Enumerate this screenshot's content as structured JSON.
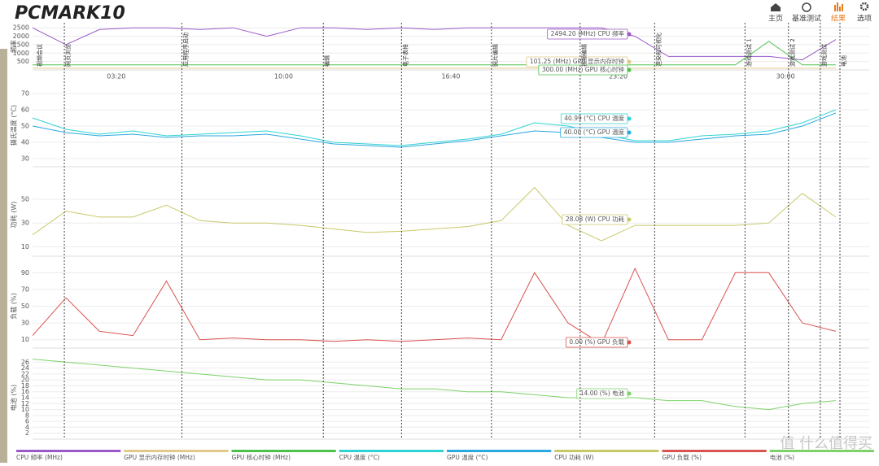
{
  "header": {
    "logo": "PCMARK10",
    "nav": [
      "主页",
      "基准测试",
      "结果",
      "选项"
    ]
  },
  "watermark": "值 什么值得买",
  "time_axis": {
    "xlim": [
      0,
      2000
    ],
    "xticks": [
      {
        "value": 200,
        "label": "03:20"
      },
      {
        "value": 600,
        "label": "10:00"
      },
      {
        "value": 1000,
        "label": "16:40"
      },
      {
        "value": 1400,
        "label": "23:20"
      },
      {
        "value": 1800,
        "label": "30:00"
      }
    ],
    "x": [
      0,
      80,
      160,
      240,
      320,
      400,
      480,
      560,
      640,
      720,
      800,
      880,
      960,
      1040,
      1120,
      1200,
      1280,
      1360,
      1440,
      1520,
      1600,
      1680,
      1760,
      1840,
      1920
    ]
  },
  "phases": [
    {
      "time": 8,
      "label": "视频会议"
    },
    {
      "time": 76,
      "label": "网页浏览"
    },
    {
      "time": 357,
      "label": "应用程序启动"
    },
    {
      "time": 695,
      "label": "编辑"
    },
    {
      "time": 882,
      "label": "电子表格"
    },
    {
      "time": 1097,
      "label": "照片编辑"
    },
    {
      "time": 1309,
      "label": "视频编辑"
    },
    {
      "time": 1487,
      "label": "渲染和可视化"
    },
    {
      "time": 1703,
      "label": "游戏测试 1"
    },
    {
      "time": 1807,
      "label": "游戏测试 2"
    },
    {
      "time": 1883,
      "label": "游戏测试"
    },
    {
      "time": 1930,
      "label": "电池"
    }
  ],
  "chart_data": [
    {
      "type": "line",
      "ylabel": "频率",
      "ylim": [
        0,
        2800
      ],
      "yticks": [
        500,
        1000,
        1500,
        2000,
        2500
      ],
      "series": [
        {
          "name": "CPU 频率 (MHz)",
          "color": "#9b59c9",
          "values": [
            2500,
            1500,
            2400,
            2500,
            2500,
            2400,
            2500,
            2000,
            2500,
            2500,
            2400,
            2500,
            2400,
            2500,
            2500,
            2500,
            2500,
            2494,
            2000,
            800,
            800,
            800,
            800,
            600,
            1800
          ]
        },
        {
          "name": "GPU 显示内存时钟 (MHz)",
          "color": "#e0c98a",
          "values": [
            101.25,
            101.25,
            101.25,
            101.25,
            101.25,
            101.25,
            101.25,
            101.25,
            101.25,
            101.25,
            101.25,
            101.25,
            101.25,
            101.25,
            101.25,
            101.25,
            101.25,
            101.25,
            101.25,
            101.25,
            101.25,
            101.25,
            101.25,
            101.25,
            101.25
          ]
        },
        {
          "name": "GPU 核心时钟 (MHz)",
          "color": "#4cc24c",
          "values": [
            300,
            300,
            300,
            300,
            300,
            300,
            300,
            300,
            300,
            300,
            300,
            300,
            300,
            300,
            300,
            300,
            300,
            300,
            300,
            300,
            300,
            300,
            1700,
            300,
            300
          ]
        }
      ],
      "annotations": [
        "2494.20 (MHz) CPU 频率",
        "101.25 (MHz) GPU 显示内存时钟",
        "300.00 (MHz) GPU 核心时钟"
      ]
    },
    {
      "type": "line",
      "ylabel": "摄氏温度 (°C)",
      "ylim": [
        25,
        76
      ],
      "yticks": [
        30,
        40,
        50,
        60,
        70
      ],
      "series": [
        {
          "name": "CPU 温度 (°C)",
          "color": "#2fd3d3",
          "values": [
            55,
            48,
            45,
            47,
            44,
            45,
            46,
            47,
            44,
            40,
            39,
            38,
            40,
            42,
            45,
            52,
            50,
            45,
            41,
            41,
            44,
            45,
            47,
            52,
            60
          ]
        },
        {
          "name": "GPU 温度 (°C)",
          "color": "#2aa8e0",
          "values": [
            50,
            46,
            44,
            45,
            43,
            44,
            44,
            45,
            42,
            39,
            38,
            37,
            39,
            41,
            44,
            47,
            46,
            43,
            40,
            40,
            42,
            44,
            45,
            50,
            58
          ]
        }
      ],
      "annotations": [
        "40.99 (°C) CPU 温度",
        "40.00 (°C) GPU 温度"
      ]
    },
    {
      "type": "line",
      "ylabel": "功耗 (W)",
      "ylim": [
        2,
        72
      ],
      "yticks": [
        10,
        30,
        50
      ],
      "series": [
        {
          "name": "CPU 功耗 (W)",
          "color": "#c8c86a",
          "values": [
            20,
            40,
            35,
            35,
            45,
            32,
            30,
            30,
            28,
            25,
            22,
            23,
            25,
            27,
            32,
            60,
            28,
            15,
            28,
            28,
            28,
            28,
            30,
            55,
            35
          ]
        }
      ],
      "annotations": [
        "28.08 (W) CPU 功耗"
      ]
    },
    {
      "type": "line",
      "ylabel": "负载 (%)",
      "ylim": [
        0,
        100
      ],
      "yticks": [
        10,
        30,
        50,
        70,
        90
      ],
      "series": [
        {
          "name": "GPU 负载 (%)",
          "color": "#d9534f",
          "values": [
            15,
            60,
            20,
            15,
            80,
            10,
            12,
            10,
            10,
            8,
            10,
            8,
            10,
            12,
            10,
            90,
            30,
            5,
            95,
            10,
            10,
            90,
            90,
            30,
            20
          ]
        }
      ],
      "annotations": [
        "0.00 (%) GPU 负载"
      ]
    },
    {
      "type": "line",
      "ylabel": "电池 (%)",
      "ylim": [
        0,
        28
      ],
      "yticks": [
        2,
        4,
        6,
        8,
        10,
        12,
        14,
        16,
        18,
        20,
        22,
        24,
        26
      ],
      "series": [
        {
          "name": "电池 (%)",
          "color": "#7dd36a",
          "values": [
            27,
            26,
            25,
            24,
            23,
            22,
            21,
            20,
            20,
            19,
            18,
            17,
            17,
            16,
            16,
            15,
            14,
            14,
            14,
            13,
            13,
            11,
            10,
            12,
            13
          ]
        }
      ],
      "annotations": [
        "14.00 (%) 电池"
      ]
    }
  ]
}
